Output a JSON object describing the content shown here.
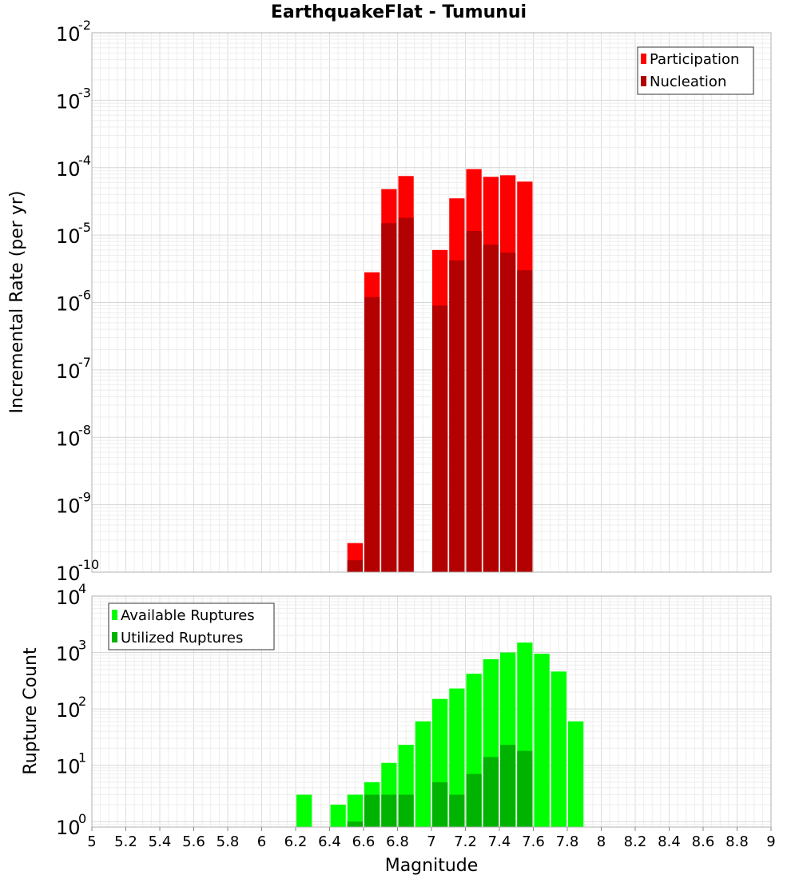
{
  "page": {
    "title": "EarthquakeFlat - Tumunui"
  },
  "chart_data": [
    {
      "type": "bar",
      "name": "rate-panel",
      "ylabel": "Incremental Rate (per yr)",
      "yscale": "log",
      "ylim": [
        1e-10,
        0.01
      ],
      "xlim": [
        5,
        9
      ],
      "grid": true,
      "legend": "top-right",
      "x": [
        6.55,
        6.65,
        6.75,
        6.85,
        6.95,
        7.05,
        7.15,
        7.25,
        7.35,
        7.45,
        7.55
      ],
      "series": [
        {
          "name": "Participation",
          "color": "#ff0000",
          "values": [
            2.7e-10,
            2.8e-06,
            4.8e-05,
            7.5e-05,
            null,
            6e-06,
            3.5e-05,
            9.5e-05,
            7.3e-05,
            7.7e-05,
            6.2e-05
          ]
        },
        {
          "name": "Nucleation",
          "color": "#b30000",
          "values": [
            1.5e-10,
            1.2e-06,
            1.5e-05,
            1.8e-05,
            null,
            9e-07,
            4.2e-06,
            1.15e-05,
            7.2e-06,
            5.5e-06,
            3e-06
          ]
        }
      ]
    },
    {
      "type": "bar",
      "name": "count-panel",
      "ylabel": "Rupture Count",
      "xlabel": "Magnitude",
      "yscale": "log",
      "ylim": [
        0.8,
        10000
      ],
      "xlim": [
        5,
        9
      ],
      "grid": true,
      "legend": "top-left",
      "x": [
        6.25,
        6.35,
        6.45,
        6.55,
        6.65,
        6.75,
        6.85,
        6.95,
        7.05,
        7.15,
        7.25,
        7.35,
        7.45,
        7.55,
        7.65,
        7.75,
        7.85
      ],
      "series": [
        {
          "name": "Available Ruptures",
          "color": "#00ff00",
          "values": [
            3,
            null,
            2,
            3,
            5,
            11,
            23,
            60,
            150,
            230,
            420,
            760,
            1000,
            1500,
            950,
            460,
            60
          ]
        },
        {
          "name": "Utilized Ruptures",
          "color": "#00b300",
          "values": [
            null,
            null,
            null,
            1,
            3,
            3,
            3,
            null,
            5,
            3,
            7,
            14,
            23,
            18,
            null,
            null,
            null
          ]
        }
      ]
    }
  ],
  "axes": {
    "x_ticks": [
      "5",
      "5.2",
      "5.4",
      "5.6",
      "5.8",
      "6",
      "6.2",
      "6.4",
      "6.6",
      "6.8",
      "7",
      "7.2",
      "7.4",
      "7.6",
      "7.8",
      "8",
      "8.2",
      "8.4",
      "8.6",
      "8.8",
      "9"
    ],
    "top_decades": [
      {
        "base": "10",
        "exp": "-2"
      },
      {
        "base": "10",
        "exp": "-3"
      },
      {
        "base": "10",
        "exp": "-4"
      },
      {
        "base": "10",
        "exp": "-5"
      },
      {
        "base": "10",
        "exp": "-6"
      },
      {
        "base": "10",
        "exp": "-7"
      },
      {
        "base": "10",
        "exp": "-8"
      },
      {
        "base": "10",
        "exp": "-9"
      },
      {
        "base": "10",
        "exp": "-10"
      }
    ],
    "bottom_decades": [
      {
        "base": "10",
        "exp": "4"
      },
      {
        "base": "10",
        "exp": "3"
      },
      {
        "base": "10",
        "exp": "2"
      },
      {
        "base": "10",
        "exp": "1"
      },
      {
        "base": "10",
        "exp": "0"
      }
    ]
  }
}
